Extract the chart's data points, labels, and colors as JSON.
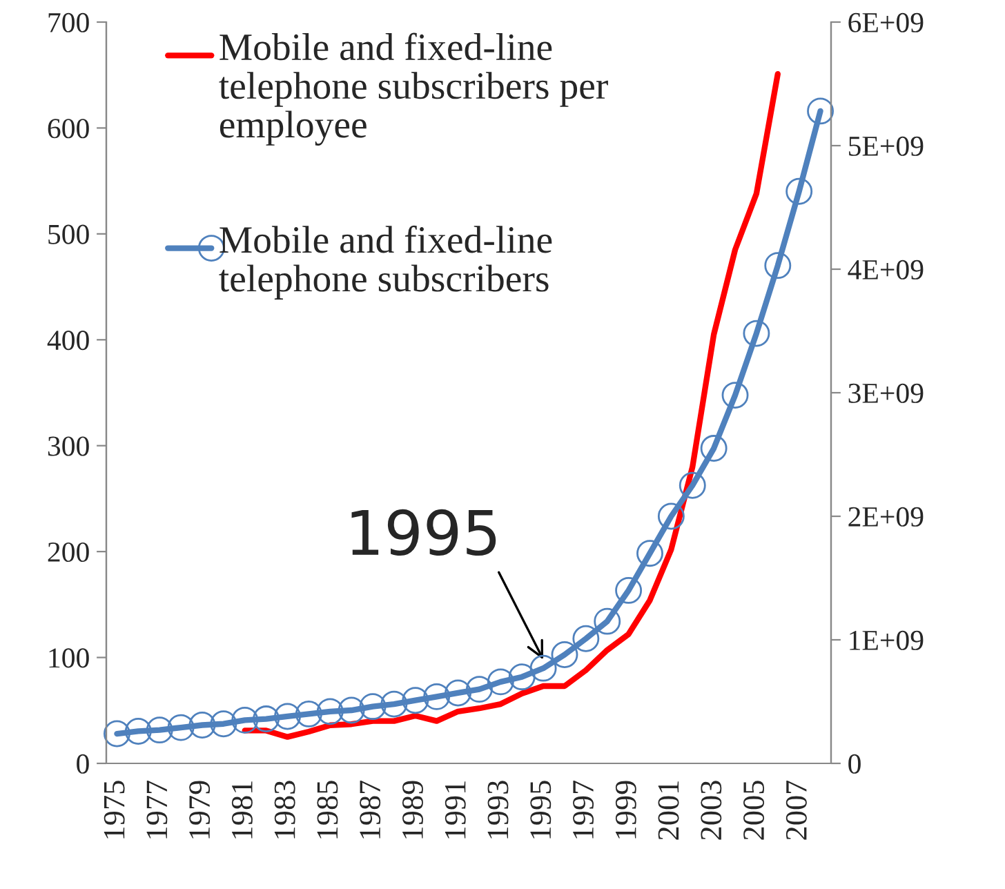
{
  "chart_data": {
    "type": "line",
    "categories": [
      "1975",
      null,
      "1977",
      null,
      "1979",
      null,
      "1981",
      null,
      "1983",
      null,
      "1985",
      null,
      "1987",
      null,
      "1989",
      null,
      "1991",
      null,
      "1993",
      null,
      "1995",
      null,
      "1997",
      null,
      "1999",
      null,
      "2001",
      null,
      "2003",
      null,
      "2005",
      null,
      "2007",
      null
    ],
    "series": [
      {
        "name": "Mobile and fixed-line telephone subscribers per employee",
        "color": "#ff0000",
        "marker": "none",
        "values": [
          null,
          null,
          null,
          null,
          null,
          null,
          31,
          31,
          25,
          30,
          36,
          37,
          40,
          40,
          45,
          40,
          49,
          52,
          56,
          66,
          73,
          73,
          88,
          107,
          122,
          154,
          202,
          280,
          405,
          485,
          538,
          651,
          null,
          null
        ]
      },
      {
        "name": "Mobile and fixed-line telephone subscribers",
        "color": "#4f81bd",
        "marker": "circle",
        "axis": "y2",
        "values": [
          240000000,
          260000000,
          270000000,
          290000000,
          310000000,
          320000000,
          350000000,
          360000000,
          380000000,
          400000000,
          420000000,
          430000000,
          460000000,
          480000000,
          510000000,
          540000000,
          570000000,
          600000000,
          660000000,
          700000000,
          770000000,
          880000000,
          1010000000,
          1150000000,
          1400000000,
          1700000000,
          2000000000,
          2250000000,
          2550000000,
          2980000000,
          3480000000,
          4030000000,
          4630000000,
          5280000000
        ]
      }
    ],
    "ylim": [
      0,
      700
    ],
    "yticks": [
      0,
      100,
      200,
      300,
      400,
      500,
      600,
      700
    ],
    "y2lim": [
      0,
      6000000000
    ],
    "y2ticks": [
      {
        "value": 0,
        "label": "0"
      },
      {
        "value": 1000000000,
        "label": "1E+09"
      },
      {
        "value": 2000000000,
        "label": "2E+09"
      },
      {
        "value": 3000000000,
        "label": "3E+09"
      },
      {
        "value": 4000000000,
        "label": "4E+09"
      },
      {
        "value": 5000000000,
        "label": "5E+09"
      },
      {
        "value": 6000000000,
        "label": "6E+09"
      }
    ],
    "annotations": [
      {
        "text": "1995",
        "x": "1995",
        "y": 98
      }
    ],
    "legend": "top left",
    "grid": false
  }
}
